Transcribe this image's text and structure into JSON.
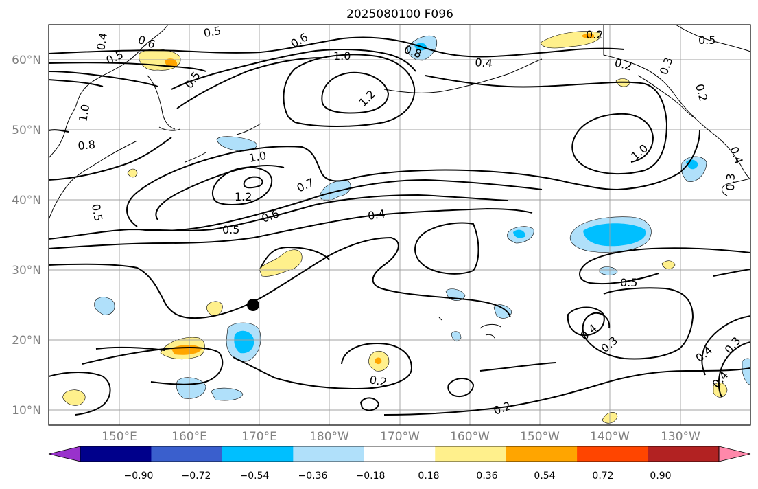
{
  "title": "2025080100 F096",
  "lat_labels": [
    "60°N",
    "50°N",
    "40°N",
    "30°N",
    "20°N",
    "10°N"
  ],
  "lon_labels": [
    "150°E",
    "160°E",
    "170°E",
    "180°W",
    "170°W",
    "160°W",
    "150°W",
    "140°W",
    "130°W"
  ],
  "colorbar": {
    "ticks": [
      "−0.90",
      "−0.72",
      "−0.54",
      "−0.36",
      "−0.18",
      "0.18",
      "0.36",
      "0.54",
      "0.72",
      "0.90"
    ],
    "colors": [
      "#9932cc",
      "#00008b",
      "#3a5fcd",
      "#00bfff",
      "#b0e0fa",
      "#ffffff",
      "#fff08c",
      "#ffa500",
      "#ff4500",
      "#b22222",
      "#ff88aa"
    ],
    "extend": "both"
  },
  "contour_labels": [
    "0.4",
    "0.6",
    "0.5",
    "0.5",
    "0.5",
    "0.6",
    "1.0",
    "1.2",
    "0.8",
    "0.4",
    "0.3",
    "0.2",
    "0.2",
    "0.5",
    "0.2",
    "1.0",
    "0.8",
    "1.0",
    "1.2",
    "0.7",
    "0.6",
    "0.5",
    "0.4",
    "1.0",
    "0.4",
    "0.3",
    "0.5",
    "0.5",
    "0.3",
    "0.4",
    "0.4",
    "0.3",
    "0.2",
    "0.2"
  ],
  "marker": {
    "lat": 25,
    "lon": "171°E"
  },
  "map_colors": {
    "positive_1": "#fff08c",
    "positive_2": "#ffa500",
    "negative_1": "#b0e0fa",
    "negative_2": "#00bfff",
    "contour": "#000000",
    "grid": "#a0a0a0",
    "coast": "#000000"
  }
}
